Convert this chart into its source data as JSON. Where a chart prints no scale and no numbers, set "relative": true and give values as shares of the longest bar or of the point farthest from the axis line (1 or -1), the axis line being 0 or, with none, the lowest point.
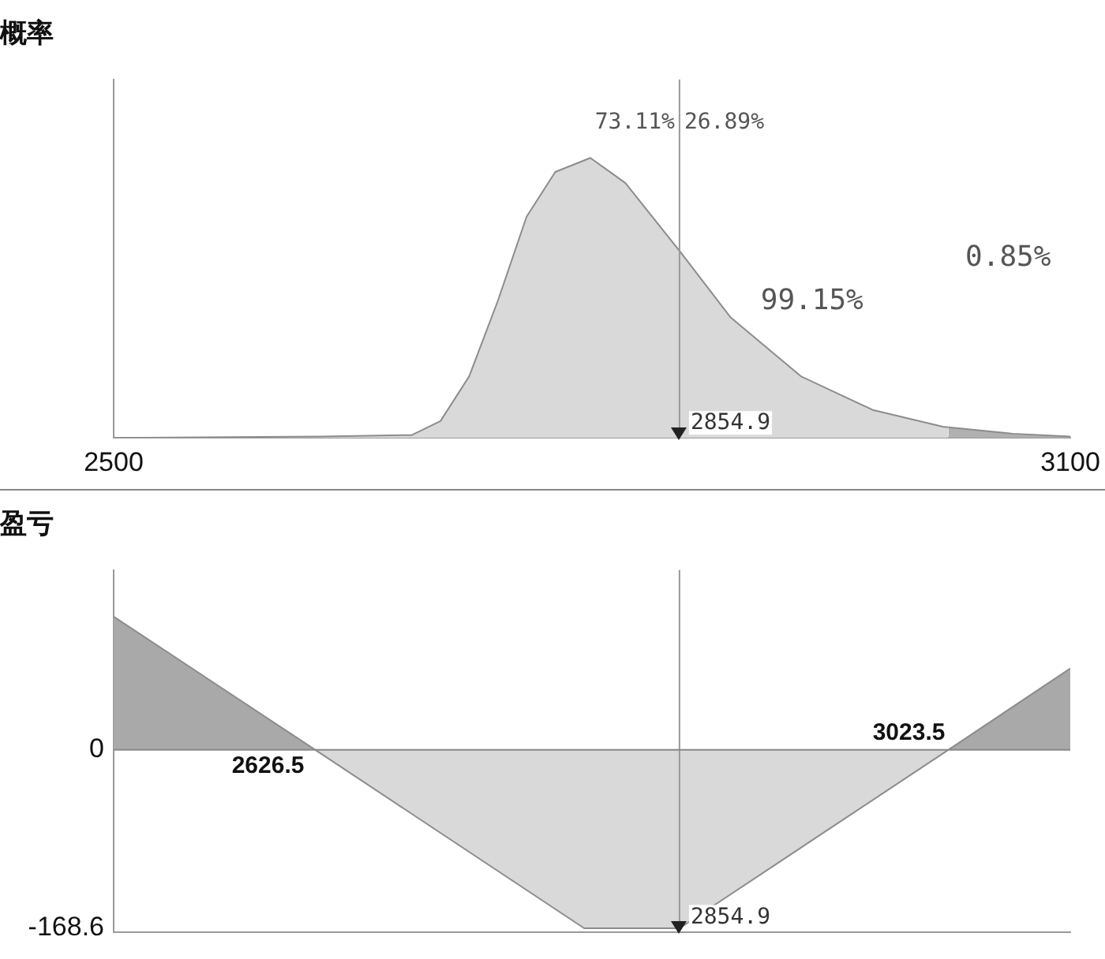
{
  "chart_data": [
    {
      "type": "area",
      "title": "概率",
      "relative": true,
      "xlim": [
        2500,
        3100
      ],
      "xticks": [
        2500,
        3100
      ],
      "tick_labels": "x",
      "grid": false,
      "legend": false,
      "series": [
        {
          "color": "#d9d9d9",
          "x": [
            2500,
            2630,
            2687,
            2705,
            2723,
            2741,
            2759,
            2777,
            2799,
            2821,
            2856,
            2887,
            2931,
            2976,
            3020,
            3023.5
          ],
          "values": [
            0,
            0.005,
            0.01,
            0.06,
            0.22,
            0.49,
            0.79,
            0.95,
            1,
            0.91,
            0.66,
            0.43,
            0.22,
            0.1,
            0.04,
            0.038
          ]
        },
        {
          "color": "#b0b0b0",
          "x": [
            3023.5,
            3064,
            3100
          ],
          "values": [
            0.038,
            0.015,
            0.005
          ]
        }
      ],
      "ref_lines": [
        {
          "axis": "x",
          "value": 2854.9,
          "label": "2854.9",
          "color": "#999999"
        }
      ],
      "annotations": [
        "73.11%",
        "26.89%",
        "99.15%",
        "0.85%"
      ]
    },
    {
      "type": "area",
      "title": "盈亏",
      "xlim": [
        2500,
        3100
      ],
      "ylim": [
        -172,
        170
      ],
      "yticks": [
        -168.6,
        0
      ],
      "tick_labels": "y",
      "grid": false,
      "legend": false,
      "series": [
        {
          "color": "#a9a9a9",
          "x": [
            2500,
            2626.5
          ],
          "values": [
            126,
            0
          ]
        },
        {
          "color": "#d9d9d9",
          "x": [
            2626.5,
            2795.1,
            2854.9,
            3023.5
          ],
          "values": [
            0,
            -168.6,
            -168.6,
            0
          ]
        },
        {
          "color": "#a9a9a9",
          "x": [
            3023.5,
            3100
          ],
          "values": [
            0,
            77
          ]
        }
      ],
      "ref_lines": [
        {
          "axis": "x",
          "value": 2854.9,
          "label": "2854.9",
          "color": "#999999"
        },
        {
          "axis": "y",
          "value": 0,
          "color": "#888888"
        }
      ],
      "annotations": [
        {
          "text": "2626.5",
          "x": 2626.5,
          "y": 0
        },
        {
          "text": "3023.5",
          "x": 3023.5,
          "y": 0
        }
      ]
    }
  ]
}
